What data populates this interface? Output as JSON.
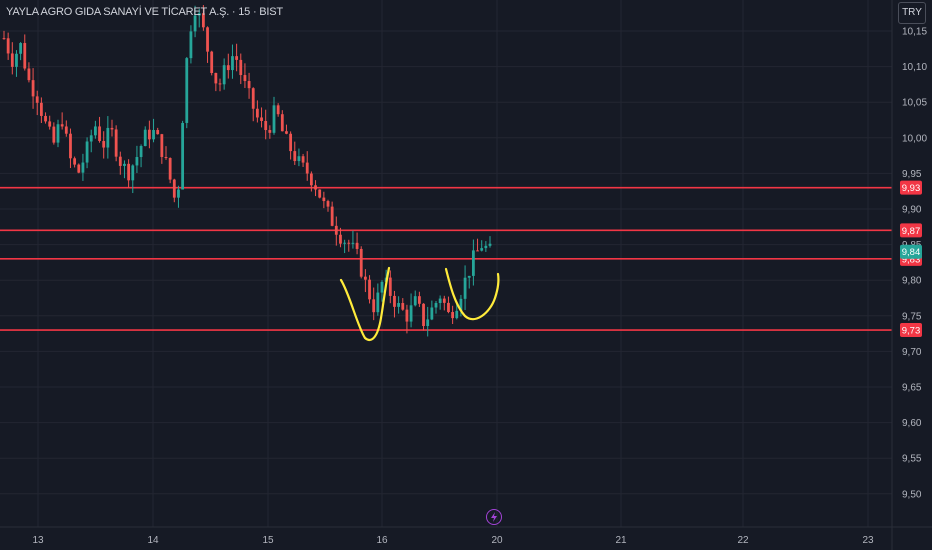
{
  "header": {
    "title": "YAYLA AGRO GIDA SANAYİ VE TİCARET A.Ş. · 15 · BIST",
    "currency_label": "TRY"
  },
  "colors": {
    "background": "#161a25",
    "grid": "#232632",
    "up": "#26a69a",
    "down": "#ef5350",
    "level_line": "#f23645",
    "annotation": "#ffeb3b",
    "text": "#b2b5be",
    "event_icon": "#a243d6"
  },
  "icons": {
    "event": "lightning-icon"
  },
  "chart_data": {
    "type": "candlestick",
    "title": "",
    "xlabel": "",
    "ylabel": "",
    "ylim": [
      9.46,
      10.19
    ],
    "y_ticks": [
      "10,15",
      "10,10",
      "10,05",
      "10,00",
      "9,95",
      "9,90",
      "9,85",
      "9,80",
      "9,75",
      "9,70",
      "9,65",
      "9,60",
      "9,55",
      "9,50"
    ],
    "y_tick_values": [
      10.15,
      10.1,
      10.05,
      10.0,
      9.95,
      9.9,
      9.85,
      9.8,
      9.75,
      9.7,
      9.65,
      9.6,
      9.55,
      9.5
    ],
    "x_ticks": [
      "13",
      "14",
      "15",
      "16",
      "20",
      "21",
      "22",
      "23"
    ],
    "grid": true,
    "horizontal_levels": [
      {
        "value": 9.93,
        "label": "9,93"
      },
      {
        "value": 9.87,
        "label": "9,87"
      },
      {
        "value": 9.83,
        "label": "9,83"
      },
      {
        "value": 9.73,
        "label": "9,73"
      }
    ],
    "last_price": {
      "value": 9.84,
      "label": "9,84"
    },
    "price_path": [
      10.14,
      10.11,
      10.13,
      10.08,
      10.06,
      10.02,
      9.99,
      10.03,
      9.97,
      9.95,
      9.98,
      10.02,
      9.99,
      10.01,
      9.97,
      9.95,
      9.97,
      10.0,
      10.01,
      9.99,
      9.95,
      9.9,
      10.09,
      10.19,
      10.16,
      10.11,
      10.07,
      10.1,
      10.12,
      10.08,
      10.05,
      10.02,
      10.01,
      10.04,
      10.0,
      9.98,
      9.96,
      9.95,
      9.93,
      9.9,
      9.88,
      9.86,
      9.85,
      9.83,
      9.79,
      9.76,
      9.8,
      9.78,
      9.76,
      9.75,
      9.77,
      9.74,
      9.76,
      9.78,
      9.75,
      9.77,
      9.8,
      9.83,
      9.85,
      9.84
    ]
  }
}
